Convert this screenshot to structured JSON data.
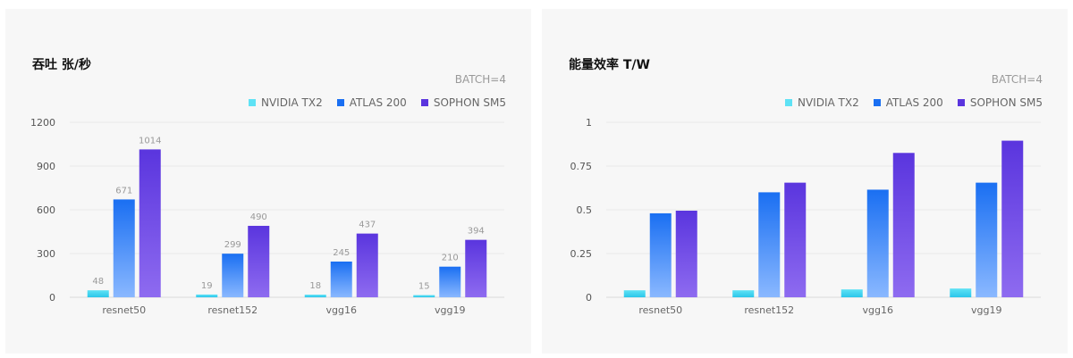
{
  "colors": {
    "tx2": [
      "#5ee2f5",
      "#2bc6ea"
    ],
    "atlas": [
      "#1a6ff2",
      "#8ab8ff"
    ],
    "sophon": [
      "#5a35de",
      "#8e6bf0"
    ]
  },
  "chart_data": [
    {
      "type": "bar",
      "title": "吞吐 张/秒",
      "subtitle": "BATCH=4",
      "categories": [
        "resnet50",
        "resnet152",
        "vgg16",
        "vgg19"
      ],
      "series": [
        {
          "name": "NVIDIA TX2",
          "values": [
            48,
            19,
            18,
            15
          ]
        },
        {
          "name": "ATLAS 200",
          "values": [
            671,
            299,
            245,
            210
          ]
        },
        {
          "name": "SOPHON SM5",
          "values": [
            1014,
            490,
            437,
            394
          ]
        }
      ],
      "yticks": [
        "0",
        "300",
        "600",
        "900",
        "1200"
      ],
      "ylim": [
        0,
        1200
      ],
      "data_labels": true,
      "legend": "top-right",
      "grid": true
    },
    {
      "type": "bar",
      "title": "能量效率 T/W",
      "subtitle": "BATCH=4",
      "categories": [
        "resnet50",
        "resnet152",
        "vgg16",
        "vgg19"
      ],
      "series": [
        {
          "name": "NVIDIA TX2",
          "values": [
            0.04,
            0.04,
            0.045,
            0.05
          ]
        },
        {
          "name": "ATLAS 200",
          "values": [
            0.48,
            0.6,
            0.615,
            0.655
          ]
        },
        {
          "name": "SOPHON SM5",
          "values": [
            0.495,
            0.655,
            0.825,
            0.895
          ]
        }
      ],
      "yticks": [
        "0",
        "0.25",
        "0.5",
        "0.75",
        "1"
      ],
      "ylim": [
        0,
        1
      ],
      "data_labels": false,
      "legend": "top-right",
      "grid": true
    }
  ]
}
